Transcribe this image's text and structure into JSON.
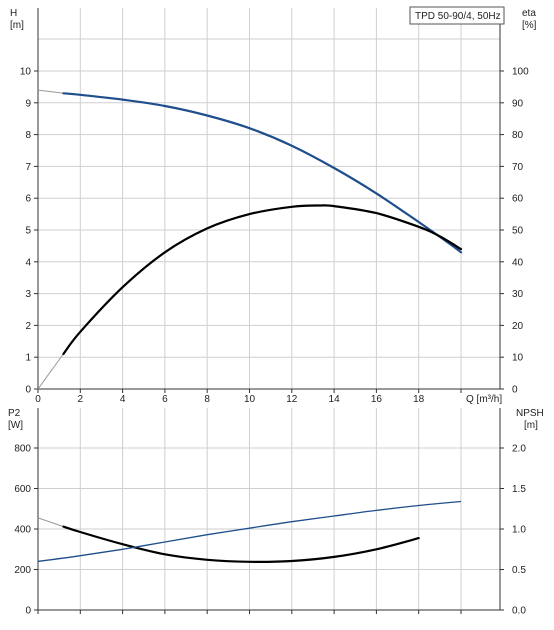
{
  "chart_data": [
    {
      "type": "line",
      "legend": "TPD 50-90/4, 50Hz",
      "x": {
        "label": "Q [m³/h]",
        "min": 0,
        "max": 20,
        "ticks": [
          "0",
          "2",
          "4",
          "6",
          "8",
          "10",
          "12",
          "14",
          "16",
          "18"
        ]
      },
      "y_left": {
        "label_line1": "H",
        "label_line2": "[m]",
        "min": 0,
        "max": 10,
        "ticks": [
          "0",
          "1",
          "2",
          "3",
          "4",
          "5",
          "6",
          "7",
          "8",
          "9",
          "10"
        ]
      },
      "y_right": {
        "label_line1": "eta",
        "label_line2": "[%]",
        "min": 0,
        "max": 100,
        "ticks": [
          "0",
          "10",
          "20",
          "30",
          "40",
          "50",
          "60",
          "70",
          "80",
          "90",
          "100"
        ]
      },
      "series": [
        {
          "axis": "left",
          "color": "#1f4e8c",
          "extension_color": "#999999",
          "operating_from": 1.2,
          "x": [
            0,
            1.2,
            2,
            4,
            6,
            8,
            10,
            12,
            14,
            16,
            18,
            19.5,
            20
          ],
          "y": [
            9.4,
            9.3,
            9.25,
            9.1,
            8.9,
            8.6,
            8.2,
            7.65,
            6.95,
            6.15,
            5.25,
            4.55,
            4.3
          ]
        },
        {
          "axis": "right",
          "color": "#000000",
          "extension_color": "#999999",
          "operating_from": 1.2,
          "x": [
            0,
            1.2,
            2,
            4,
            6,
            8,
            10,
            12,
            13.3,
            14,
            16,
            18,
            19,
            20
          ],
          "y": [
            0,
            11,
            18,
            32,
            43,
            50.5,
            55,
            57.3,
            57.7,
            57.5,
            55.3,
            51,
            48,
            44
          ]
        }
      ]
    },
    {
      "type": "line",
      "x": {
        "min": 0,
        "max": 20
      },
      "y_left": {
        "label_line1": "P2",
        "label_line2": "[W]",
        "min": 0,
        "max": 1000,
        "ticks": [
          "0",
          "200",
          "400",
          "600",
          "800"
        ]
      },
      "y_right": {
        "label_line1": "NPSH",
        "label_line2": "[m]",
        "min": 0,
        "max": 2.5,
        "ticks": [
          "0.0",
          "0.5",
          "1.0",
          "1.5",
          "2.0"
        ]
      },
      "series": [
        {
          "axis": "left",
          "color": "#000000",
          "extension_color": "#999999",
          "operating_from": 1.2,
          "x": [
            0,
            1.2,
            2,
            4,
            6,
            8,
            10,
            12,
            14,
            16,
            18
          ],
          "y": [
            455,
            412,
            385,
            325,
            275,
            248,
            238,
            242,
            262,
            300,
            355
          ]
        },
        {
          "axis": "right",
          "color": "#1f4e8c",
          "x": [
            0,
            2,
            4,
            6,
            8,
            10,
            12,
            14,
            16,
            18,
            20
          ],
          "y": [
            0.6,
            0.67,
            0.75,
            0.84,
            0.93,
            1.01,
            1.09,
            1.16,
            1.23,
            1.29,
            1.34
          ]
        }
      ]
    }
  ]
}
